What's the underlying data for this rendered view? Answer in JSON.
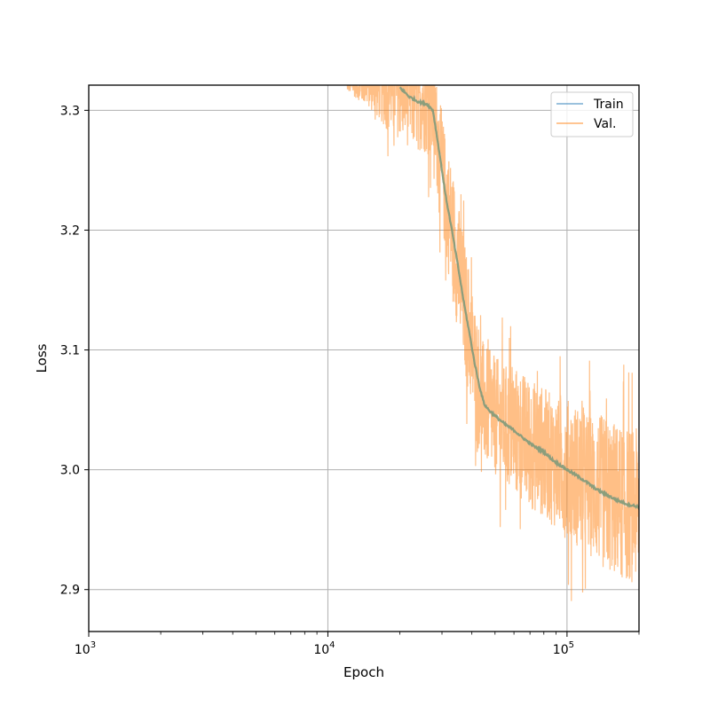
{
  "colors": {
    "train": "#1f77b4",
    "val": "#ff7f0e",
    "grid": "#b0b0b0",
    "axes": "#000000"
  },
  "chart_data": {
    "type": "line",
    "title": "",
    "xlabel": "Epoch",
    "ylabel": "Loss",
    "xscale": "log",
    "xlim": [
      1000,
      200000
    ],
    "ylim": [
      2.865,
      3.321
    ],
    "grid": true,
    "legend": "top-right",
    "x_ticks": [
      {
        "value": 1000,
        "base": "10",
        "exp": "3"
      },
      {
        "value": 10000,
        "base": "10",
        "exp": "4"
      },
      {
        "value": 100000,
        "base": "10",
        "exp": "5"
      }
    ],
    "y_ticks": [
      {
        "value": 2.9,
        "label": "2.9"
      },
      {
        "value": 3.0,
        "label": "3.0"
      },
      {
        "value": 3.1,
        "label": "3.1"
      },
      {
        "value": 3.2,
        "label": "3.2"
      },
      {
        "value": 3.3,
        "label": "3.3"
      }
    ],
    "series": [
      {
        "name": "Train",
        "color": "#1f77b4",
        "opacity": 0.55,
        "x": [
          20000,
          22000,
          24000,
          26000,
          27500,
          29000,
          31000,
          33000,
          35000,
          37000,
          39000,
          41000,
          43000,
          45000,
          47000,
          50000,
          55000,
          60000,
          65000,
          70000,
          75000,
          80000,
          85000,
          90000,
          95000,
          100000,
          110000,
          120000,
          130000,
          140000,
          150000,
          160000,
          170000,
          180000,
          190000,
          200000
        ],
        "y": [
          3.319,
          3.311,
          3.307,
          3.305,
          3.3,
          3.27,
          3.23,
          3.2,
          3.17,
          3.14,
          3.115,
          3.09,
          3.07,
          3.055,
          3.05,
          3.045,
          3.038,
          3.033,
          3.027,
          3.022,
          3.018,
          3.015,
          3.01,
          3.006,
          3.003,
          3.0,
          2.995,
          2.99,
          2.985,
          2.981,
          2.978,
          2.975,
          2.973,
          2.971,
          2.97,
          2.969
        ]
      },
      {
        "name": "Val.",
        "color": "#ff7f0e",
        "opacity": 0.5,
        "x": [
          12000,
          15000,
          18000,
          20000,
          22000,
          24000,
          26000,
          27500,
          29000,
          31000,
          33000,
          35000,
          37000,
          39000,
          41000,
          43000,
          45000,
          47000,
          50000,
          55000,
          60000,
          65000,
          70000,
          75000,
          80000,
          85000,
          90000,
          95000,
          100000,
          110000,
          120000,
          130000,
          140000,
          150000,
          160000,
          170000,
          180000,
          190000,
          200000
        ],
        "y": [
          3.321,
          3.321,
          3.321,
          3.321,
          3.318,
          3.312,
          3.308,
          3.302,
          3.27,
          3.23,
          3.2,
          3.17,
          3.14,
          3.115,
          3.09,
          3.07,
          3.055,
          3.05,
          3.045,
          3.038,
          3.033,
          3.027,
          3.022,
          3.018,
          3.015,
          3.01,
          3.006,
          3.003,
          3.0,
          2.995,
          2.99,
          2.985,
          2.981,
          2.978,
          2.975,
          2.973,
          2.971,
          2.97,
          2.969
        ],
        "noise": [
          0.005,
          0.02,
          0.04,
          0.045,
          0.05,
          0.045,
          0.045,
          0.045,
          0.045,
          0.05,
          0.055,
          0.055,
          0.055,
          0.055,
          0.05,
          0.05,
          0.05,
          0.05,
          0.05,
          0.05,
          0.055,
          0.055,
          0.055,
          0.055,
          0.055,
          0.055,
          0.055,
          0.055,
          0.06,
          0.06,
          0.06,
          0.06,
          0.065,
          0.065,
          0.065,
          0.065,
          0.065,
          0.065,
          0.065
        ]
      }
    ]
  }
}
